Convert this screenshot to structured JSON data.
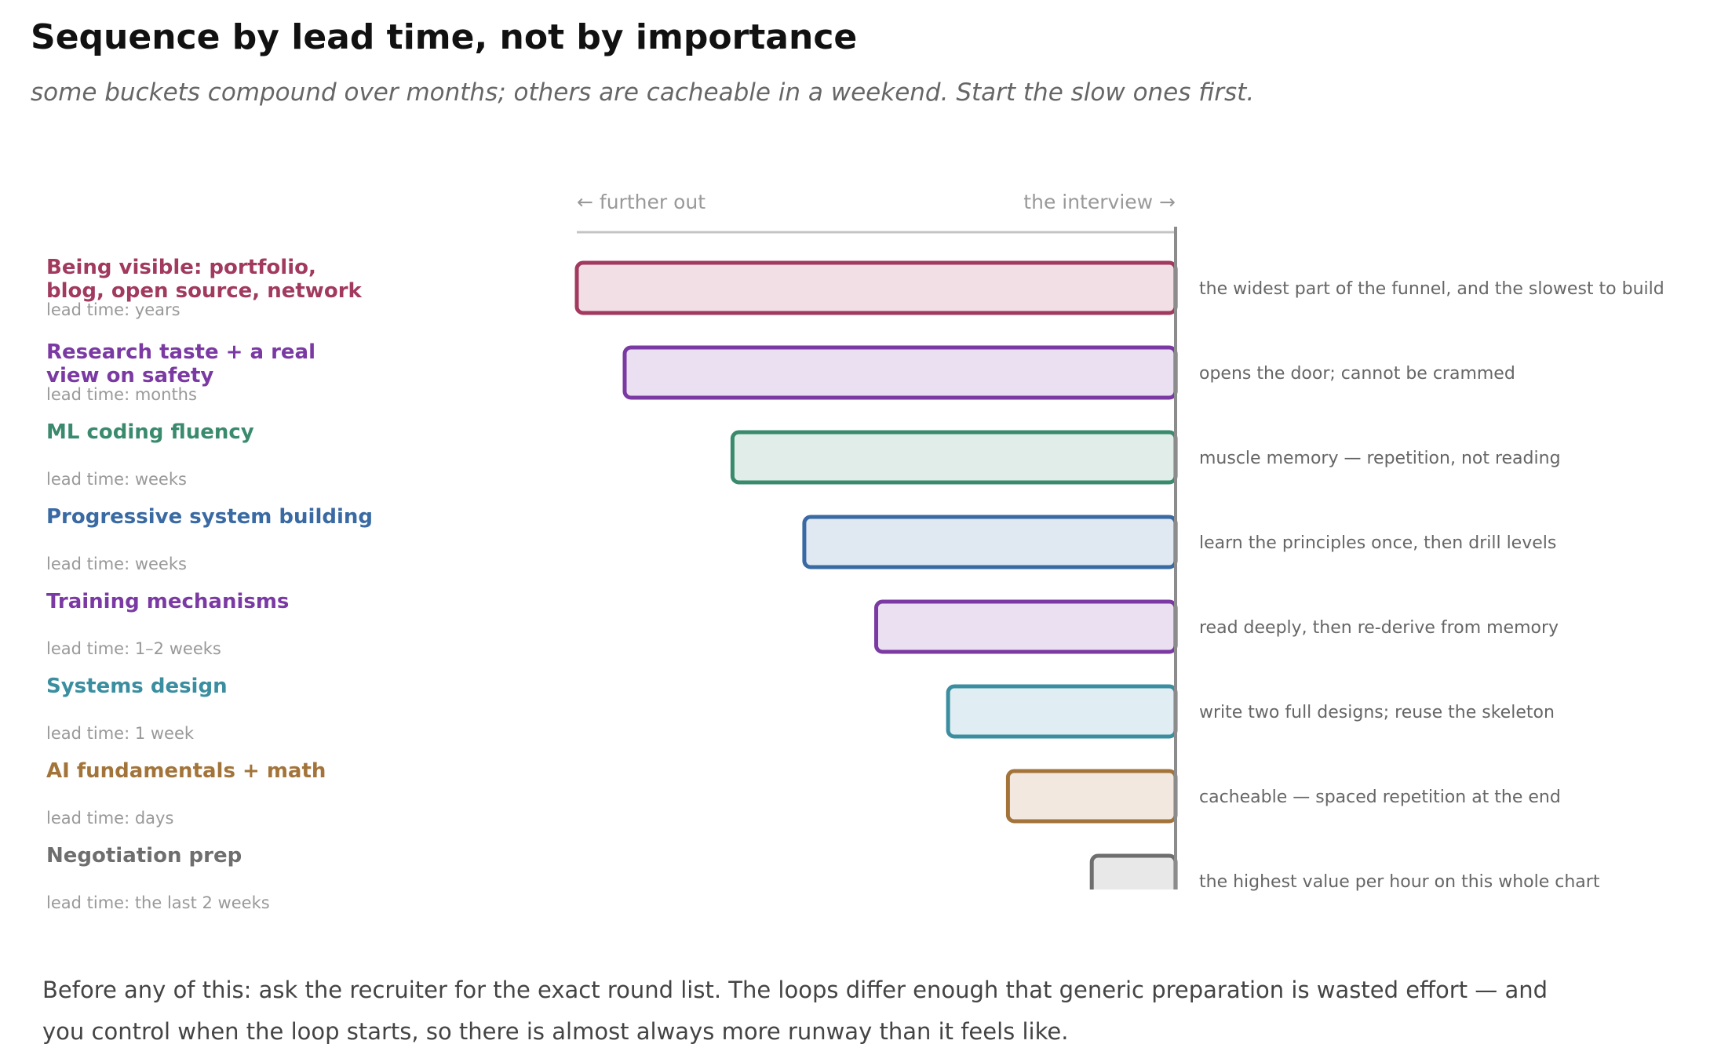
{
  "title": "Sequence by lead time, not by importance",
  "subtitle": "some buckets compound over months; others are cacheable in a weekend. Start the slow ones first.",
  "chart_data": {
    "type": "bar",
    "orientation": "horizontal",
    "axis_left_label": "← further out",
    "axis_right_label": "the interview →",
    "value_meaning": "relative lead time (share of the full bar width)",
    "xlim": [
      0,
      1
    ],
    "rows": [
      {
        "label_lines": [
          "Being visible: portfolio,",
          "blog, open source, network"
        ],
        "lead_time": "lead time: years",
        "note": "the widest part of the funnel, and the slowest to build",
        "value": 1.0,
        "color": "#a13a5e",
        "fill": "#f2dfe6"
      },
      {
        "label_lines": [
          "Research taste + a real",
          "view on safety"
        ],
        "lead_time": "lead time: months",
        "note": "opens the door; cannot be crammed",
        "value": 0.92,
        "color": "#7b3aa3",
        "fill": "#ebdff2"
      },
      {
        "label_lines": [
          "ML coding fluency"
        ],
        "lead_time": "lead time: weeks",
        "note": "muscle memory — repetition, not reading",
        "value": 0.74,
        "color": "#3a8a6e",
        "fill": "#e0ede8"
      },
      {
        "label_lines": [
          "Progressive system building"
        ],
        "lead_time": "lead time: weeks",
        "note": "learn the principles once, then drill levels",
        "value": 0.62,
        "color": "#3a6aa3",
        "fill": "#e0e8f2"
      },
      {
        "label_lines": [
          "Training mechanisms"
        ],
        "lead_time": "lead time: 1–2 weeks",
        "note": "read deeply, then re-derive from memory",
        "value": 0.5,
        "color": "#7b3aa3",
        "fill": "#ebdff2"
      },
      {
        "label_lines": [
          "Systems design"
        ],
        "lead_time": "lead time: 1 week",
        "note": "write two full designs; reuse the skeleton",
        "value": 0.38,
        "color": "#3a8ea0",
        "fill": "#e0edf2"
      },
      {
        "label_lines": [
          "AI fundamentals + math"
        ],
        "lead_time": "lead time: days",
        "note": "cacheable — spaced repetition at the end",
        "value": 0.28,
        "color": "#a3743a",
        "fill": "#f2e8e0"
      },
      {
        "label_lines": [
          "Negotiation prep"
        ],
        "lead_time": "lead time: the last 2 weeks",
        "note": "the highest value per hour on this whole chart",
        "value": 0.14,
        "color": "#6e6e6e",
        "fill": "#e8e8e8"
      }
    ]
  },
  "footnote": {
    "line1": "Before any of this: ask the recruiter for the exact round list. The loops differ enough that generic preparation is wasted effort — and",
    "line2": "you control when the loop starts, so there is almost always more runway than it feels like."
  }
}
